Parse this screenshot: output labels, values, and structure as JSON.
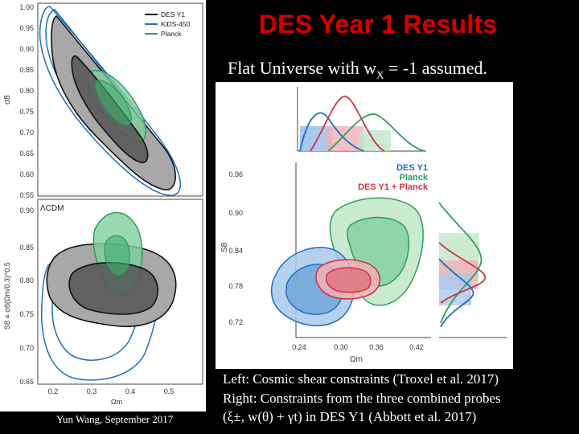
{
  "slide": {
    "title": "DES Year 1 Results",
    "subtitle_pre": "Flat Universe with w",
    "subtitle_sub": "X",
    "subtitle_post": " = -1 assumed.",
    "footer": "Yun Wang, September 2017",
    "caption": [
      "Left: Cosmic shear constraints (Troxel et al. 2017)",
      "Right: Constraints from the three combined probes",
      "(ξ±, w(θ) + γt) in DES Y1 (Abbott et al. 2017)"
    ]
  },
  "left_figure": {
    "legend": [
      "DES Y1",
      "KiDS-450",
      "Planck"
    ],
    "model_label": "ΛCDM",
    "top_ylabel": "σ8",
    "top_yticks": [
      "1.00",
      "0.95",
      "0.90",
      "0.85",
      "0.80",
      "0.75",
      "0.70",
      "0.65",
      "0.60",
      "0.55"
    ],
    "bottom_ylabel": "S8 ≡ σ8(Ωm/0.3)^0.5",
    "bottom_yticks": [
      "0.90",
      "0.85",
      "0.80",
      "0.75",
      "0.70",
      "0.65"
    ],
    "xticks": [
      "0.2",
      "0.3",
      "0.4",
      "0.5"
    ],
    "xlabel": "Ωm"
  },
  "right_figure": {
    "legend": [
      "DES Y1",
      "Planck",
      "DES Y1 + Planck"
    ],
    "ylabel": "S8",
    "yticks": [
      "0.96",
      "0.90",
      "0.84",
      "0.78",
      "0.72"
    ],
    "xticks": [
      "0.24",
      "0.30",
      "0.36",
      "0.42"
    ],
    "xlabel": "Ωm"
  },
  "colors": {
    "title": "#d40000",
    "des": "#1f6fbf",
    "kids": "#1f6fbf",
    "planck": "#2e9e5b",
    "combined": "#d03040",
    "des_black": "#111111"
  }
}
